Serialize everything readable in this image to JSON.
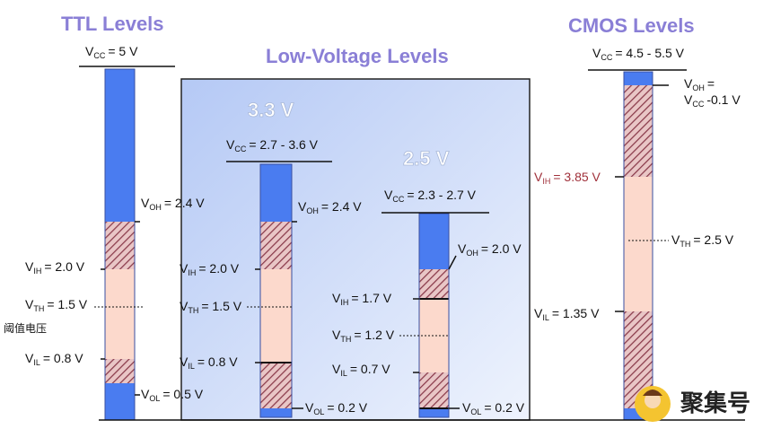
{
  "ttl": {
    "title": "TTL Levels",
    "note": "阈值电压",
    "labels": [
      {
        "symbol": "V",
        "sub": "CC",
        "value": "= 5 V"
      },
      {
        "symbol": "V",
        "sub": "OH",
        "value": "= 2.4 V"
      },
      {
        "symbol": "V",
        "sub": "IH",
        "value": "= 2.0 V"
      },
      {
        "symbol": "V",
        "sub": "TH",
        "value": "= 1.5 V"
      },
      {
        "symbol": "V",
        "sub": "IL",
        "value": "= 0.8 V"
      },
      {
        "symbol": "V",
        "sub": "OL",
        "value": "= 0.5 V"
      }
    ]
  },
  "low_voltage": {
    "title": "Low-Voltage Levels",
    "v33": {
      "heading": "3.3 V",
      "labels": [
        {
          "symbol": "V",
          "sub": "CC",
          "value": "= 2.7 - 3.6 V"
        },
        {
          "symbol": "V",
          "sub": "OH",
          "value": "= 2.4 V"
        },
        {
          "symbol": "V",
          "sub": "IH",
          "value": "= 2.0 V"
        },
        {
          "symbol": "V",
          "sub": "TH",
          "value": "= 1.5 V"
        },
        {
          "symbol": "V",
          "sub": "IL",
          "value": "= 0.8 V"
        },
        {
          "symbol": "V",
          "sub": "OL",
          "value": "= 0.2 V"
        }
      ]
    },
    "v25": {
      "heading": "2.5 V",
      "labels": [
        {
          "symbol": "V",
          "sub": "CC",
          "value": "= 2.3 - 2.7 V"
        },
        {
          "symbol": "V",
          "sub": "OH",
          "value": "= 2.0 V"
        },
        {
          "symbol": "V",
          "sub": "IH",
          "value": "= 1.7 V"
        },
        {
          "symbol": "V",
          "sub": "TH",
          "value": "= 1.2 V"
        },
        {
          "symbol": "V",
          "sub": "IL",
          "value": "= 0.7 V"
        },
        {
          "symbol": "V",
          "sub": "OL",
          "value": "= 0.2 V"
        }
      ]
    }
  },
  "cmos": {
    "title": "CMOS Levels",
    "labels": [
      {
        "symbol": "V",
        "sub": "CC",
        "value": "= 4.5 - 5.5 V"
      },
      {
        "symbol": "V",
        "sub": "OH",
        "value": "="
      },
      {
        "symbol": "V",
        "sub": "CC",
        "value": "-0.1 V"
      },
      {
        "symbol": "V",
        "sub": "IH",
        "value": "= 3.85 V"
      },
      {
        "symbol": "V",
        "sub": "TH",
        "value": "= 2.5 V"
      },
      {
        "symbol": "V",
        "sub": "IL",
        "value": "= 1.35 V"
      }
    ]
  },
  "watermark": "聚集号"
}
